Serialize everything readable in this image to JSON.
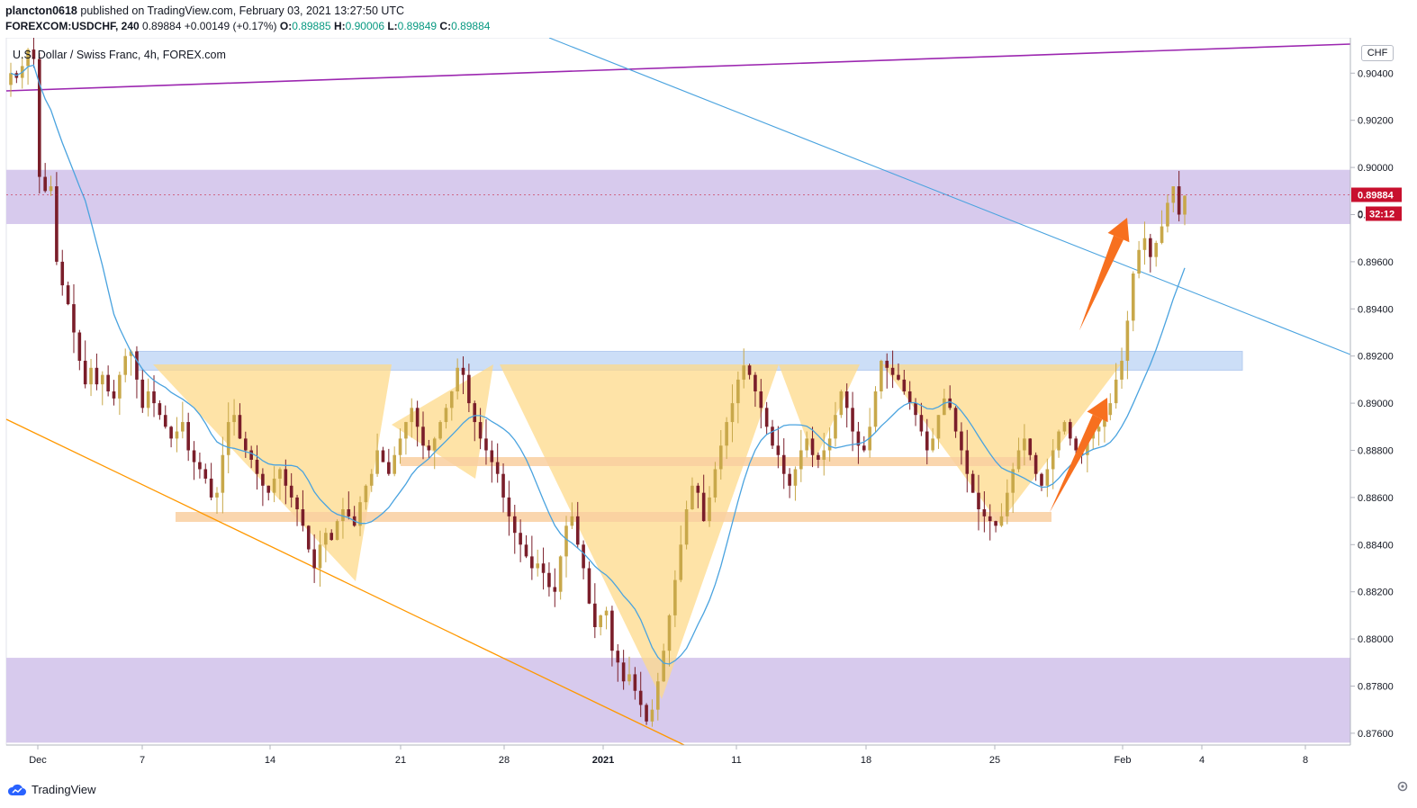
{
  "header": {
    "author": "plancton0618",
    "published": "published on TradingView.com, February 03, 2021 13:27:50 UTC",
    "symbol": "FOREXCOM:USDCHF, 240",
    "last": "0.89884",
    "change": "+0.00149 (+0.17%)",
    "o_label": "O:",
    "o_value": "0.89885",
    "h_label": "H:",
    "h_value": "0.90006",
    "l_label": "L:",
    "l_value": "0.89849",
    "c_label": "C:",
    "c_value": "0.89884"
  },
  "currency": "CHF",
  "footer": {
    "brand": "TradingView"
  },
  "colors": {
    "up": "#c8a84a",
    "down": "#7a1e2a",
    "ma": "#4aa3df",
    "purple_zone": "#d5c7ec",
    "blue_zone": "#bcd3f5",
    "triangle": "#fdd98a",
    "orange_band": "#f9cfa0",
    "trend_purple": "#9c27b0",
    "trend_orange": "#ff9800",
    "trend_blue": "#4aa3df",
    "arrow": "#f7701f",
    "price_tag": "#c8102e"
  },
  "chart_data": {
    "type": "candlestick",
    "title": "U.S. Dollar / Swiss Franc, 4h, FOREX.com",
    "ylim": [
      0.8755,
      0.9055
    ],
    "y_ticks": [
      "0.90400",
      "0.90200",
      "0.90000",
      "0.89800",
      "0.89600",
      "0.89400",
      "0.89200",
      "0.89000",
      "0.88800",
      "0.88600",
      "0.88400",
      "0.88200",
      "0.88000",
      "0.87800",
      "0.87600"
    ],
    "x_ticks": [
      "Dec",
      "7",
      "14",
      "21",
      "28",
      "2021",
      "11",
      "18",
      "25",
      "Feb",
      "4",
      "8"
    ],
    "current_price_label": "0.89884",
    "countdown_label": "32:12",
    "hidden_price_label": "0",
    "zones": [
      {
        "name": "resistance-zone-upper",
        "from": 0.8976,
        "to": 0.8999
      },
      {
        "name": "support-zone-lower",
        "from": 0.8756,
        "to": 0.8792
      },
      {
        "name": "neckline-zone",
        "from": 0.8914,
        "to": 0.8922
      }
    ],
    "candles_path": [
      0.904,
      0.9038,
      0.9043,
      0.905,
      0.9046,
      0.8996,
      0.899,
      0.8992,
      0.896,
      0.895,
      0.8942,
      0.893,
      0.8918,
      0.8908,
      0.8915,
      0.8908,
      0.8912,
      0.8905,
      0.8902,
      0.8912,
      0.892,
      0.8922,
      0.891,
      0.8898,
      0.8905,
      0.89,
      0.8895,
      0.889,
      0.8885,
      0.8888,
      0.8892,
      0.888,
      0.8875,
      0.8872,
      0.8868,
      0.886,
      0.8862,
      0.8878,
      0.8892,
      0.8895,
      0.8885,
      0.888,
      0.8876,
      0.887,
      0.8865,
      0.8862,
      0.8868,
      0.8872,
      0.8865,
      0.886,
      0.8855,
      0.8848,
      0.8838,
      0.883,
      0.884,
      0.8845,
      0.8842,
      0.885,
      0.8855,
      0.8852,
      0.8848,
      0.8858,
      0.8865,
      0.887,
      0.888,
      0.8875,
      0.887,
      0.8878,
      0.8885,
      0.8892,
      0.8898,
      0.889,
      0.8882,
      0.888,
      0.8885,
      0.8892,
      0.8898,
      0.8905,
      0.8915,
      0.8912,
      0.89,
      0.8892,
      0.8885,
      0.888,
      0.8875,
      0.887,
      0.886,
      0.8852,
      0.8845,
      0.884,
      0.8835,
      0.883,
      0.8832,
      0.8828,
      0.8822,
      0.882,
      0.8835,
      0.8848,
      0.8852,
      0.884,
      0.883,
      0.8815,
      0.8805,
      0.881,
      0.8812,
      0.8795,
      0.879,
      0.8782,
      0.8785,
      0.8778,
      0.8772,
      0.8765,
      0.877,
      0.8782,
      0.8795,
      0.881,
      0.8825,
      0.884,
      0.8855,
      0.8865,
      0.8862,
      0.885,
      0.886,
      0.8872,
      0.8882,
      0.8892,
      0.89,
      0.891,
      0.8916,
      0.8912,
      0.8905,
      0.8898,
      0.889,
      0.8882,
      0.8878,
      0.887,
      0.8865,
      0.8872,
      0.888,
      0.8885,
      0.8878,
      0.8876,
      0.888,
      0.8885,
      0.8895,
      0.8905,
      0.8898,
      0.8888,
      0.8882,
      0.888,
      0.889,
      0.8905,
      0.8918,
      0.8915,
      0.8912,
      0.891,
      0.8905,
      0.89,
      0.8895,
      0.8888,
      0.888,
      0.8885,
      0.8895,
      0.8902,
      0.8898,
      0.8888,
      0.888,
      0.887,
      0.8862,
      0.8855,
      0.8852,
      0.885,
      0.8848,
      0.8852,
      0.8862,
      0.8872,
      0.888,
      0.8885,
      0.8878,
      0.887,
      0.8865,
      0.8872,
      0.888,
      0.8888,
      0.8892,
      0.8885,
      0.888,
      0.8878,
      0.8885,
      0.8888,
      0.889,
      0.8895,
      0.89,
      0.891,
      0.8918,
      0.8935,
      0.8955,
      0.8965,
      0.897,
      0.8962,
      0.8968,
      0.8975,
      0.8985,
      0.8992,
      0.898,
      0.8988
    ]
  }
}
